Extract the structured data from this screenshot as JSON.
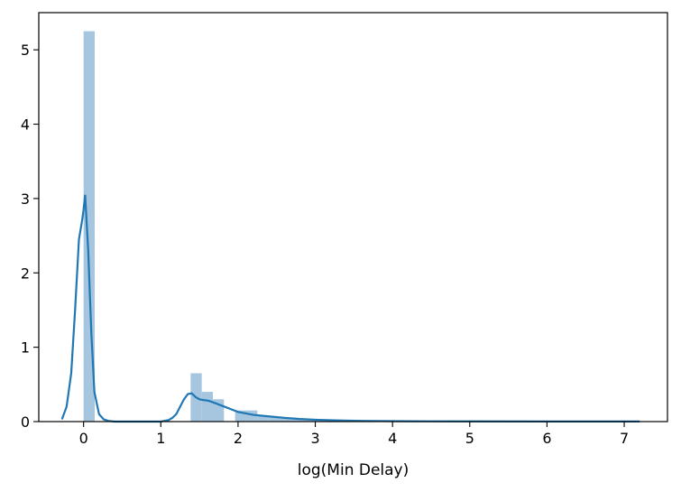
{
  "chart_data": {
    "type": "bar",
    "title": "",
    "xlabel": "log(Min Delay)",
    "ylabel": "",
    "xlim": [
      -0.58,
      7.56
    ],
    "ylim": [
      0,
      5.5
    ],
    "grid": false,
    "xticks": [
      0,
      1,
      2,
      3,
      4,
      5,
      6,
      7
    ],
    "yticks": [
      0,
      1,
      2,
      3,
      4,
      5
    ],
    "colors": {
      "bars": "#a6c6e0",
      "kde": "#1f77b4",
      "axes": "#000000"
    },
    "bins": [
      {
        "x0": 0.0,
        "x1": 0.144,
        "density": 5.25
      },
      {
        "x0": 1.386,
        "x1": 1.53,
        "density": 0.65
      },
      {
        "x0": 1.53,
        "x1": 1.674,
        "density": 0.4
      },
      {
        "x0": 1.674,
        "x1": 1.818,
        "density": 0.3
      },
      {
        "x0": 1.962,
        "x1": 2.106,
        "density": 0.15
      },
      {
        "x0": 2.106,
        "x1": 2.25,
        "density": 0.15
      },
      {
        "x0": 2.25,
        "x1": 2.394,
        "density": 0.08
      },
      {
        "x0": 2.394,
        "x1": 2.538,
        "density": 0.06
      },
      {
        "x0": 2.538,
        "x1": 2.682,
        "density": 0.04
      },
      {
        "x0": 2.682,
        "x1": 2.826,
        "density": 0.03
      },
      {
        "x0": 2.826,
        "x1": 2.97,
        "density": 0.02
      },
      {
        "x0": 2.97,
        "x1": 3.114,
        "density": 0.015
      }
    ],
    "kde": {
      "x": [
        -0.28,
        -0.22,
        -0.16,
        -0.11,
        -0.06,
        -0.02,
        0.0,
        0.02,
        0.06,
        0.1,
        0.14,
        0.2,
        0.26,
        0.32,
        0.4,
        0.6,
        0.8,
        1.0,
        1.1,
        1.15,
        1.2,
        1.25,
        1.3,
        1.35,
        1.4,
        1.45,
        1.5,
        1.55,
        1.62,
        1.7,
        1.8,
        1.9,
        2.0,
        2.1,
        2.2,
        2.4,
        2.6,
        2.8,
        3.0,
        3.3,
        3.6,
        4.0,
        4.5,
        5.0,
        6.0,
        7.0,
        7.2
      ],
      "y": [
        0.03,
        0.2,
        0.65,
        1.5,
        2.45,
        2.7,
        2.85,
        3.05,
        2.3,
        1.2,
        0.4,
        0.1,
        0.03,
        0.01,
        0.0,
        0.0,
        0.0,
        0.0,
        0.02,
        0.05,
        0.1,
        0.2,
        0.3,
        0.37,
        0.38,
        0.33,
        0.3,
        0.29,
        0.28,
        0.25,
        0.21,
        0.17,
        0.13,
        0.11,
        0.09,
        0.07,
        0.05,
        0.035,
        0.025,
        0.015,
        0.01,
        0.006,
        0.004,
        0.003,
        0.002,
        0.002,
        0.002
      ]
    }
  }
}
